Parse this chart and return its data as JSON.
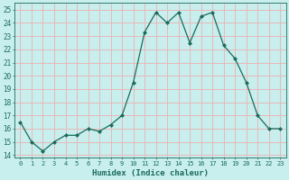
{
  "x": [
    0,
    1,
    2,
    3,
    4,
    5,
    6,
    7,
    8,
    9,
    10,
    11,
    12,
    13,
    14,
    15,
    16,
    17,
    18,
    19,
    20,
    21,
    22,
    23
  ],
  "y": [
    16.5,
    15.0,
    14.3,
    15.0,
    15.5,
    15.5,
    16.0,
    15.8,
    16.3,
    17.0,
    19.5,
    23.3,
    24.8,
    24.0,
    24.8,
    22.5,
    24.5,
    24.8,
    22.3,
    21.3,
    19.5,
    17.0,
    16.0,
    16.0
  ],
  "line_color": "#1a6b5a",
  "marker": "D",
  "marker_size": 2.0,
  "bg_color": "#c8eeee",
  "grid_color": "#e8b8b8",
  "xlabel": "Humidex (Indice chaleur)",
  "ylabel_ticks": [
    14,
    15,
    16,
    17,
    18,
    19,
    20,
    21,
    22,
    23,
    24,
    25
  ],
  "xlim": [
    -0.5,
    23.5
  ],
  "ylim": [
    13.8,
    25.5
  ]
}
